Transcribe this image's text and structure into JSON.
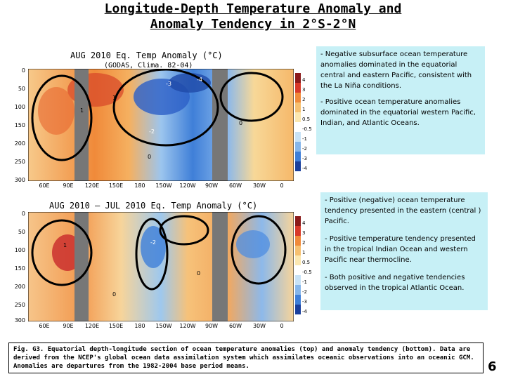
{
  "title_line1": "Longitude-Depth Temperature Anomaly and",
  "title_line2": "Anomaly Tendency in 2°S-2°N",
  "top_panel": {
    "title": "AUG 2010 Eq. Temp Anomaly (°C)",
    "subtitle": "(GODAS, Clima. 82-04)"
  },
  "bottom_panel": {
    "title": "AUG 2010 – JUL 2010 Eq. Temp Anomaly (°C)"
  },
  "y_ticks": [
    "0",
    "50",
    "100",
    "150",
    "200",
    "250",
    "300"
  ],
  "x_ticks": [
    "60E",
    "90E",
    "120E",
    "150E",
    "180",
    "150W",
    "120W",
    "90W",
    "60W",
    "30W",
    "0"
  ],
  "top_colorbar": [
    "4",
    "3",
    "2",
    "1",
    "0.5",
    "-0.5",
    "-1",
    "-2",
    "-3",
    "-4"
  ],
  "bottom_colorbar": [
    "4",
    "3",
    "2",
    "1",
    "0.5",
    "-0.5",
    "-1",
    "-2",
    "-3",
    "-4"
  ],
  "contour_labels_top": [
    "1",
    "1",
    "-3",
    "-4",
    "-2",
    "0",
    "0"
  ],
  "contour_labels_bottom": [
    "-2",
    "1",
    "0",
    "0"
  ],
  "note_top": [
    "- Negative subsurface ocean temperature anomalies dominated in the equatorial central and eastern Pacific, consistent with the La Niña conditions.",
    "- Positive ocean temperature anomalies dominated in the equatorial western Pacific, Indian, and Atlantic Oceans."
  ],
  "note_bottom": [
    "- Positive (negative) ocean temperature tendency presented in the eastern (central ) Pacific.",
    "- Positive temperature tendency presented in the tropical Indian Ocean and western Pacific near thermocline.",
    "- Both positive and negative tendencies observed in the tropical Atlantic Ocean."
  ],
  "caption": "Fig. G3. Equatorial depth-longitude section of ocean temperature anomalies (top) and anomaly tendency (bottom). Data are derived from the NCEP's global ocean data assimilation system which assimilates oceanic observations into an oceanic GCM. Anomalies are departures from the 1982-2004 base period means.",
  "page_number": "6",
  "colors": {
    "note_bg": "#c7f0f6",
    "land_mask": "#777777",
    "warm": "#f4a640",
    "cold": "#4f8ee0"
  }
}
